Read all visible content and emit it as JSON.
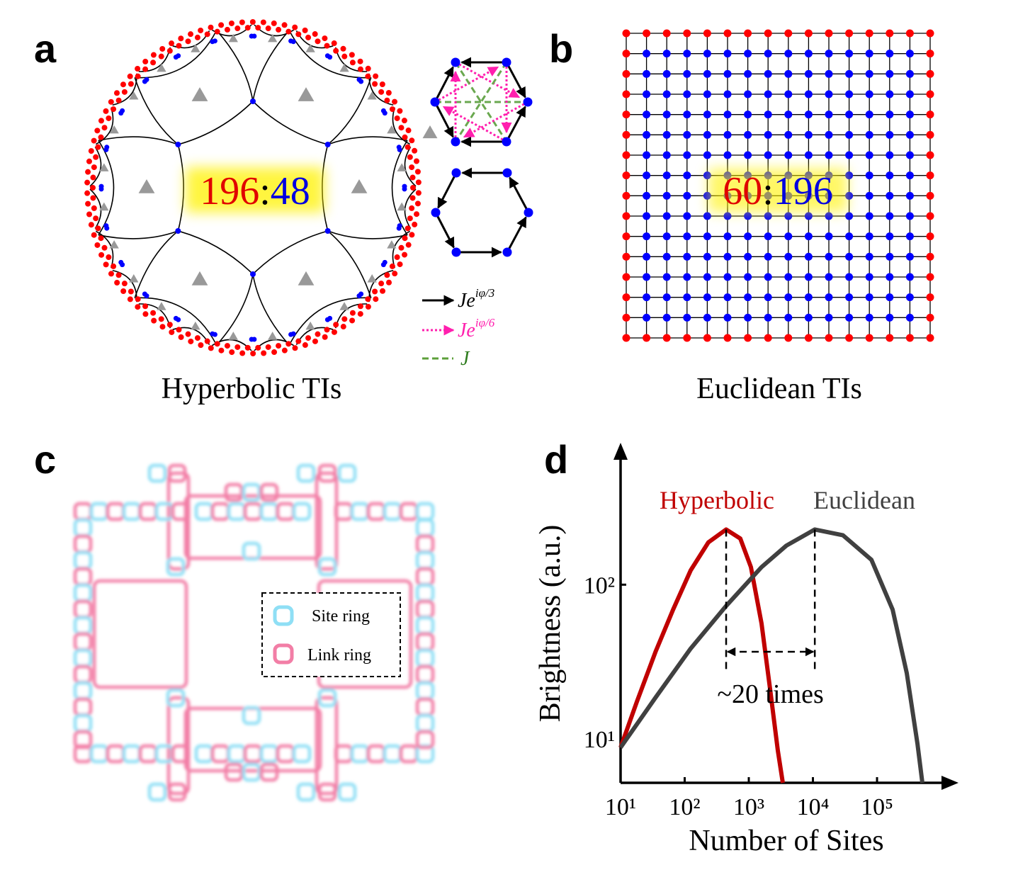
{
  "panels": {
    "a": {
      "label": "a",
      "ratio": {
        "boundary": "196",
        "separator": ":",
        "bulk": "48"
      },
      "caption": "Hyperbolic TIs",
      "couplings": [
        {
          "base": "Je",
          "sup": "iφ/3"
        },
        {
          "base": "Je",
          "sup": "iφ/6"
        },
        {
          "base": "J"
        }
      ]
    },
    "b": {
      "label": "b",
      "ratio": {
        "boundary": "60",
        "separator": ":",
        "bulk": "196"
      },
      "caption": "Euclidean TIs"
    },
    "c": {
      "label": "c",
      "legend": [
        "Site ring",
        "Link ring"
      ]
    }
  },
  "chart_data": {
    "type": "line",
    "panel_label": "d",
    "xlabel": "Number of Sites",
    "ylabel": "Brightness (a.u.)",
    "log_x": true,
    "log_y": true,
    "xlim": [
      10,
      1600000
    ],
    "ylim": [
      5.2,
      780
    ],
    "xticks": [
      {
        "value": 10,
        "label": "10¹"
      },
      {
        "value": 100,
        "label": "10²"
      },
      {
        "value": 1000,
        "label": "10³"
      },
      {
        "value": 10000,
        "label": "10⁴"
      },
      {
        "value": 100000,
        "label": "10⁵"
      }
    ],
    "yticks": [
      {
        "value": 10,
        "label": "10¹"
      },
      {
        "value": 100,
        "label": "10²"
      }
    ],
    "annotation": "~20 times",
    "series": [
      {
        "name": "Hyperbolic",
        "color": "#c00000",
        "x": [
          10,
          18,
          35,
          66,
          124,
          234,
          443,
          736,
          1080,
          1580,
          2200,
          2840,
          3390
        ],
        "values": [
          8.8,
          17.5,
          36.6,
          69,
          124,
          188,
          228,
          199,
          130,
          56,
          19.5,
          8.4,
          5.2
        ]
      },
      {
        "name": "Euclidean",
        "color": "#404040",
        "x": [
          10,
          35,
          124,
          443,
          1580,
          3850,
          10700,
          29500,
          81700,
          175000,
          291000,
          427000,
          509000
        ],
        "values": [
          8.8,
          18.5,
          38.6,
          72.8,
          130,
          179,
          228,
          209,
          145,
          69,
          26.7,
          9.3,
          5.2
        ]
      }
    ]
  }
}
